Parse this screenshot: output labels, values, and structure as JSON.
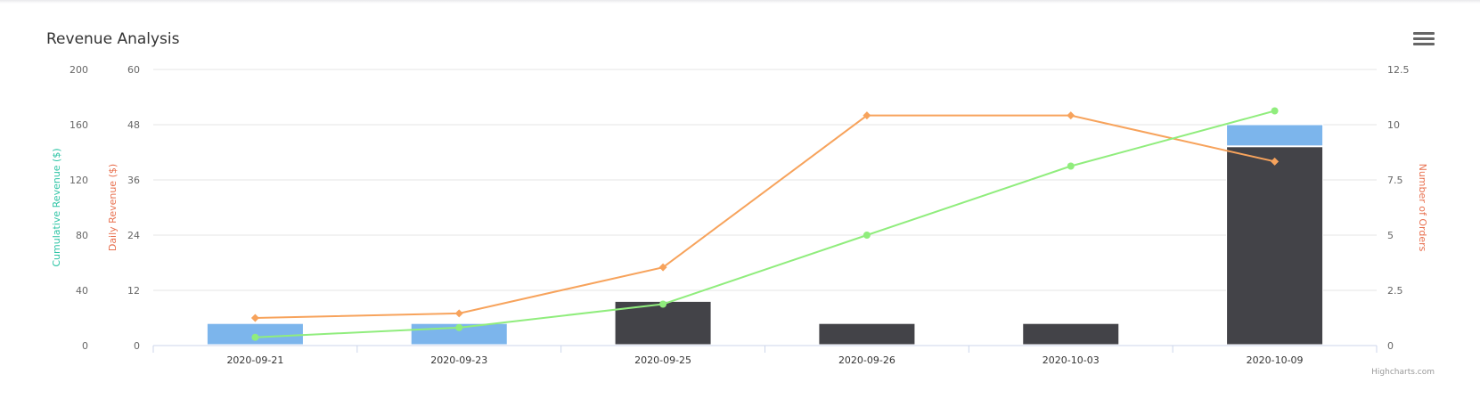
{
  "chart_data": {
    "type": "bar",
    "title": "Revenue Analysis",
    "credits": "Highcharts.com",
    "categories": [
      "2020-09-21",
      "2020-09-23",
      "2020-09-25",
      "2020-09-26",
      "2020-10-03",
      "2020-10-09"
    ],
    "axes": {
      "cumulative": {
        "label": "Cumulative Revenue ($)",
        "min": 0,
        "max": 200,
        "ticks": [
          "0",
          "40",
          "80",
          "120",
          "160",
          "200"
        ],
        "color": "#2ec4a5"
      },
      "daily": {
        "label": "Daily Revenue ($)",
        "min": 0,
        "max": 60,
        "ticks": [
          "0",
          "12",
          "24",
          "36",
          "48",
          "60"
        ],
        "color": "#e8704f"
      },
      "orders": {
        "label": "Number of Orders",
        "min": 0,
        "max": 12.5,
        "ticks": [
          "0",
          "2.5",
          "5",
          "7.5",
          "10",
          "12.5"
        ],
        "color": "#e8704f"
      }
    },
    "stacked_bars": {
      "axis": "orders",
      "series": [
        {
          "color": "#434348",
          "values": [
            0,
            0,
            2,
            1,
            1,
            9
          ]
        },
        {
          "color": "#7cb5ec",
          "values": [
            1,
            1,
            0,
            0,
            0,
            1
          ]
        }
      ]
    },
    "series": [
      {
        "type": "line",
        "axis": "daily",
        "color": "#f7a35c",
        "marker": "diamond",
        "values": [
          6,
          7,
          17,
          50,
          50,
          40
        ]
      },
      {
        "type": "line",
        "axis": "cumulative",
        "color": "#90ed7d",
        "marker": "circle",
        "values": [
          6,
          13,
          30,
          80,
          130,
          170
        ]
      }
    ],
    "grid": true,
    "legend": "none"
  },
  "ui": {
    "menu_icon": "hamburger-menu-icon"
  }
}
